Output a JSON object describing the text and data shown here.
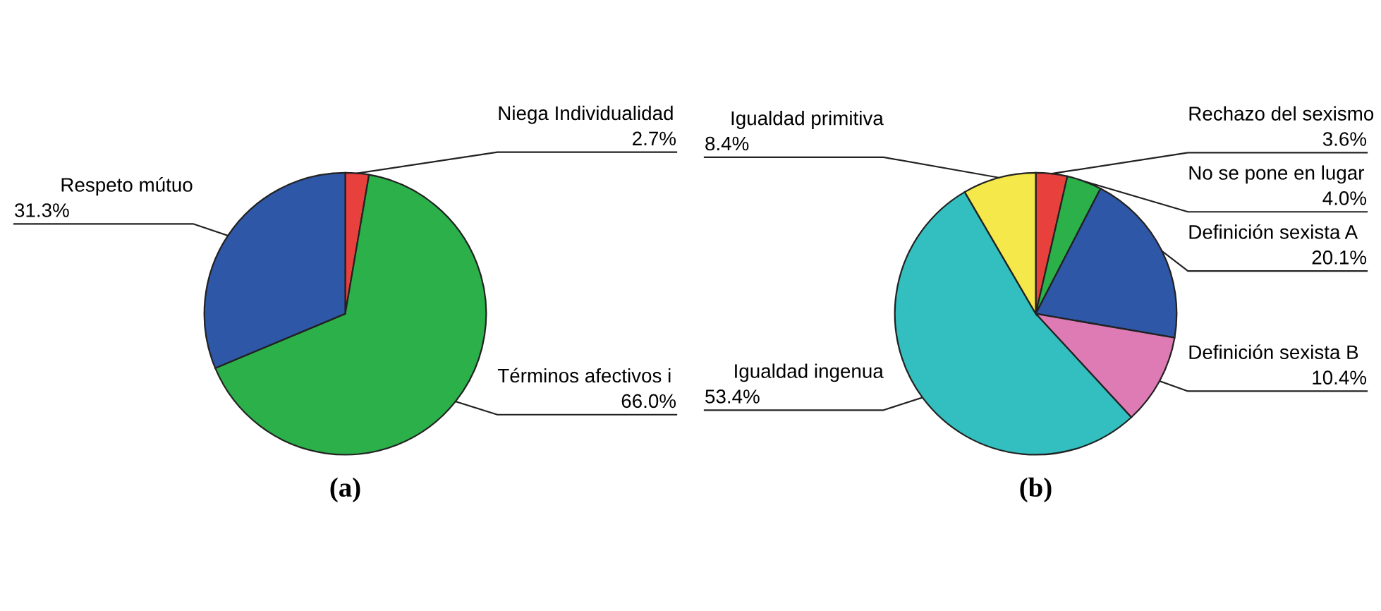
{
  "chart_data": [
    {
      "type": "pie",
      "xlabel": "(a)",
      "categories": [
        "Niega Individualidad",
        "Términos afectivos i",
        "Respeto mútuo"
      ],
      "values": [
        2.7,
        66.0,
        31.3
      ],
      "colors": [
        "#e8403c",
        "#2bb04a",
        "#2f57a8"
      ],
      "value_labels": [
        "2.7%",
        "66.0%",
        "31.3%"
      ]
    },
    {
      "type": "pie",
      "xlabel": "(b)",
      "categories": [
        "Rechazo del sexismo",
        "No se pone en lugar",
        "Definición sexista A",
        "Definición sexista B",
        "Igualdad ingenua",
        "Igualdad primitiva"
      ],
      "values": [
        3.6,
        4.0,
        20.1,
        10.4,
        53.4,
        8.4
      ],
      "colors": [
        "#e8403c",
        "#2bb04a",
        "#2f57a8",
        "#de7bb4",
        "#33bfbf",
        "#f4e84a"
      ],
      "value_labels": [
        "3.6%",
        "4.0%",
        "20.1%",
        "10.4%",
        "53.4%",
        "8.4%"
      ]
    }
  ]
}
